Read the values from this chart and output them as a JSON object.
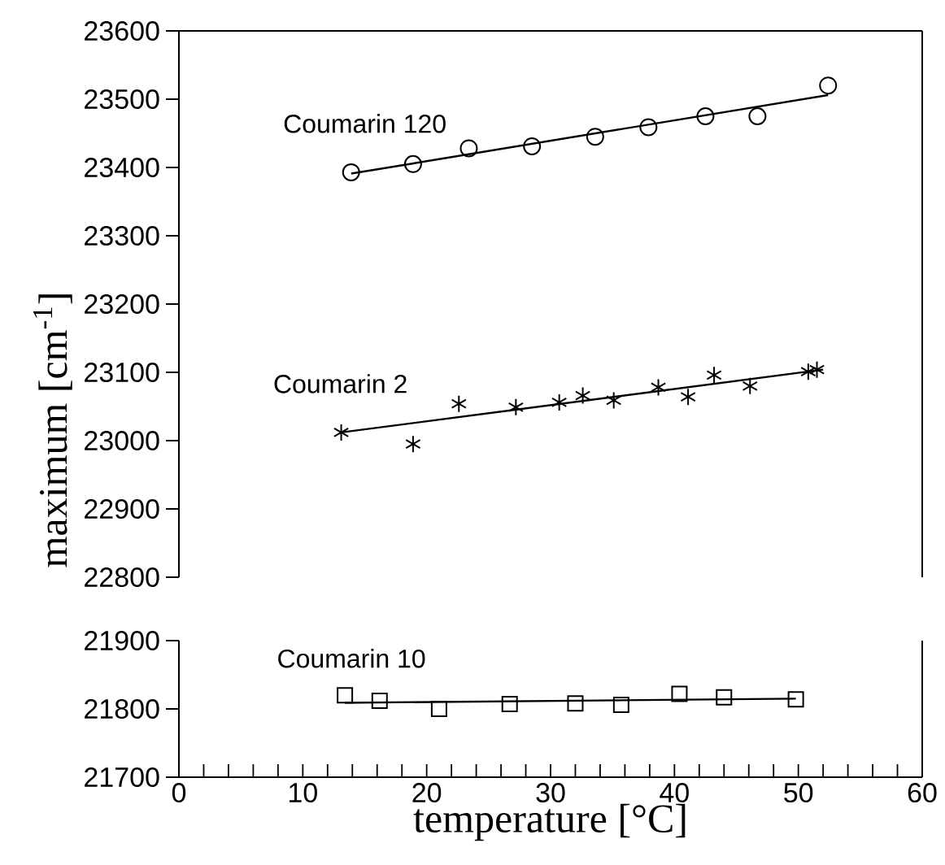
{
  "chart_data": [
    {
      "type": "scatter",
      "ylabel": "maximum  [cm$^{-1}$]",
      "xlim": [
        0,
        60
      ],
      "ylim": [
        22800,
        23600
      ],
      "yticks": [
        22800,
        22900,
        23000,
        23100,
        23200,
        23300,
        23400,
        23500,
        23600
      ],
      "tick_labels": "y",
      "series": [
        {
          "name": "Coumarin  120",
          "marker": "circle",
          "color": "#000000",
          "x": [
            13.9,
            18.9,
            23.4,
            28.5,
            33.6,
            37.9,
            42.5,
            46.7,
            52.4
          ],
          "values": [
            23393,
            23405,
            23428,
            23431,
            23445,
            23459,
            23475,
            23475,
            23520
          ]
        },
        {
          "type": "line",
          "color": "#000000",
          "x": [
            13.9,
            52.4
          ],
          "values": [
            23391,
            23506
          ]
        },
        {
          "name": "Coumarin  2",
          "marker": "cross",
          "color": "#000000",
          "x": [
            13.1,
            18.9,
            22.6,
            27.2,
            30.7,
            32.6,
            35.1,
            38.7,
            41.1,
            43.2,
            46.1,
            50.8,
            51.5
          ],
          "values": [
            23012,
            22995,
            23054,
            23049,
            23056,
            23066,
            23059,
            23078,
            23064,
            23096,
            23080,
            23101,
            23104
          ]
        },
        {
          "type": "line",
          "color": "#000000",
          "x": [
            13.1,
            52.0
          ],
          "values": [
            23012,
            23104
          ]
        }
      ]
    },
    {
      "type": "scatter",
      "xlabel": "temperature [°C]",
      "xlim": [
        0,
        60
      ],
      "xticks": [
        0,
        10,
        20,
        30,
        40,
        50,
        60
      ],
      "ylim": [
        21700,
        21900
      ],
      "yticks": [
        21700,
        21800,
        21900
      ],
      "series": [
        {
          "name": "Coumarin  10",
          "marker": "square",
          "color": "#000000",
          "x": [
            13.4,
            16.2,
            21.0,
            26.7,
            32.0,
            35.7,
            40.4,
            44.0,
            49.8
          ],
          "values": [
            21820,
            21812,
            21800,
            21807,
            21808,
            21806,
            21822,
            21817,
            21814
          ]
        },
        {
          "type": "line",
          "color": "#000000",
          "x": [
            13.4,
            49.8
          ],
          "values": [
            21809,
            21815
          ]
        }
      ]
    }
  ]
}
